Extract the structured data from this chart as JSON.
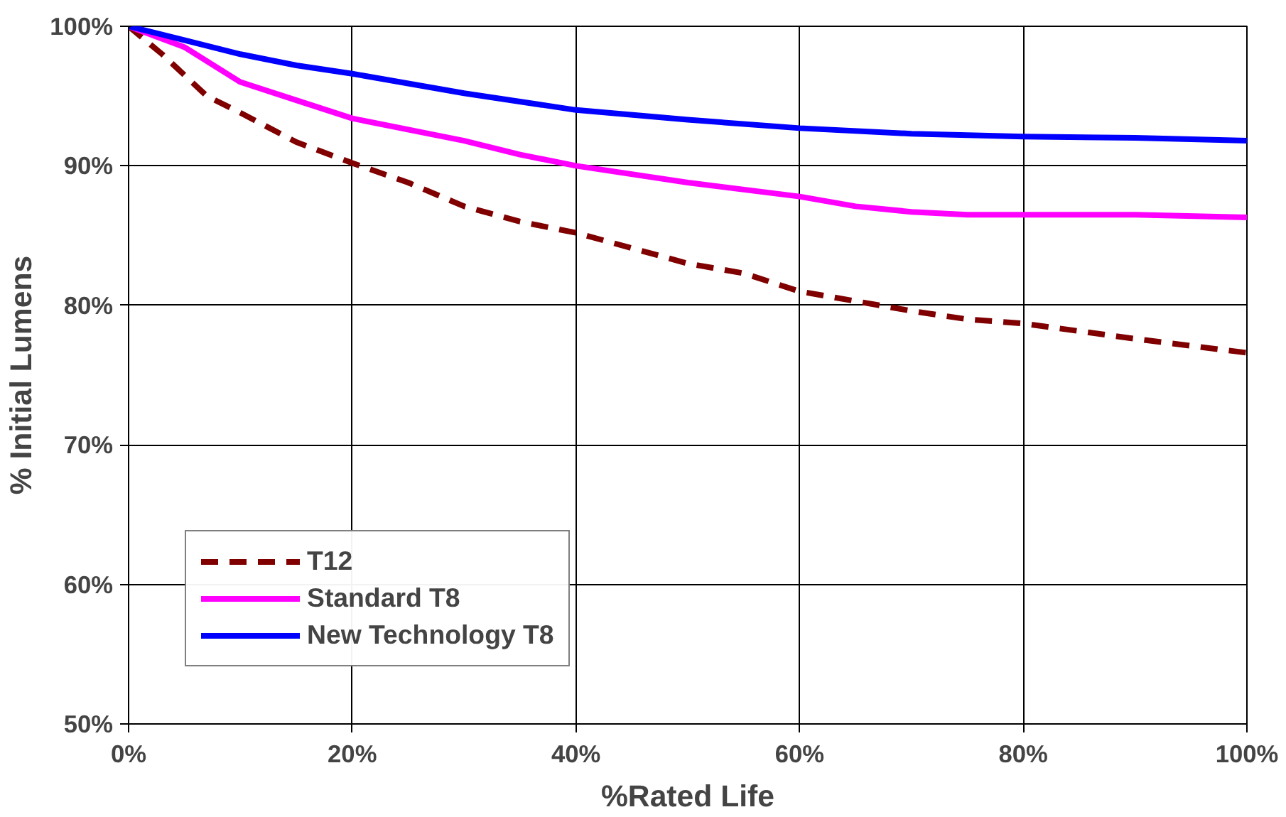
{
  "chart_data": {
    "type": "line",
    "xlabel": "%Rated Life",
    "ylabel": "% Initial Lumens",
    "xlim": [
      0,
      100
    ],
    "ylim": [
      50,
      100
    ],
    "xticks": [
      {
        "value": 0,
        "label": "0%"
      },
      {
        "value": 20,
        "label": "20%"
      },
      {
        "value": 40,
        "label": "40%"
      },
      {
        "value": 60,
        "label": "60%"
      },
      {
        "value": 80,
        "label": "80%"
      },
      {
        "value": 100,
        "label": "100%"
      }
    ],
    "yticks": [
      {
        "value": 50,
        "label": "50%"
      },
      {
        "value": 60,
        "label": "60%"
      },
      {
        "value": 70,
        "label": "70%"
      },
      {
        "value": 80,
        "label": "80%"
      },
      {
        "value": 90,
        "label": "90%"
      },
      {
        "value": 100,
        "label": "100%"
      }
    ],
    "grid": true,
    "legend": "bottom left",
    "marker": "none",
    "series": [
      {
        "name": "T12",
        "color": "#800000",
        "line_style": "dashed",
        "x": [
          0,
          3,
          7,
          10,
          15,
          20,
          25,
          30,
          35,
          40,
          50,
          55,
          60,
          65,
          70,
          75,
          80,
          90,
          100
        ],
        "values": [
          100,
          98,
          95,
          93.8,
          91.7,
          90.2,
          88.8,
          87.1,
          86,
          85.2,
          83,
          82.3,
          81,
          80.3,
          79.6,
          79,
          78.7,
          77.6,
          76.6
        ]
      },
      {
        "name": "Standard T8",
        "color": "#ff00ff",
        "line_style": "solid",
        "x": [
          0,
          5,
          10,
          15,
          20,
          30,
          35,
          40,
          50,
          60,
          65,
          70,
          75,
          80,
          90,
          100
        ],
        "values": [
          100,
          98.5,
          96,
          94.7,
          93.4,
          91.8,
          90.8,
          90,
          88.8,
          87.8,
          87.1,
          86.7,
          86.5,
          86.5,
          86.5,
          86.3
        ]
      },
      {
        "name": "New Technology T8",
        "color": "#0000ff",
        "line_style": "solid",
        "x": [
          0,
          10,
          15,
          20,
          30,
          40,
          50,
          60,
          70,
          80,
          90,
          100
        ],
        "values": [
          100,
          98,
          97.2,
          96.6,
          95.2,
          94,
          93.3,
          92.7,
          92.3,
          92.1,
          92,
          91.8
        ]
      }
    ]
  }
}
